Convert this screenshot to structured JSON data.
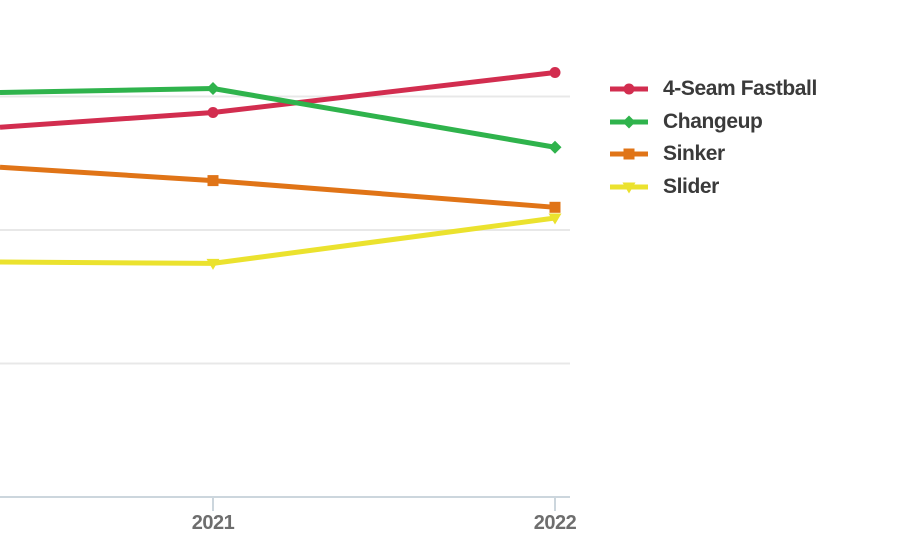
{
  "chart_data": {
    "type": "line",
    "title": "",
    "x_tick_labels": [
      "2021",
      "2022"
    ],
    "x_axis_note": "chart is cropped on the left; lines enter from the left edge (earlier data point off-screen)",
    "y_axis": {
      "labels_visible": false,
      "unit_est": "percent (estimated; gridlines unlabeled, assumed 10 per gridline)",
      "gridline_values_est": [
        10,
        20,
        30
      ],
      "ylim_est": [
        0,
        37
      ]
    },
    "series": [
      {
        "name": "4-Seam Fastball",
        "color": "#d22d4f",
        "marker": "circle",
        "points": [
          {
            "x": "left-edge",
            "value_est": 27.7
          },
          {
            "x": "2021",
            "value_est": 28.8
          },
          {
            "x": "2022",
            "value_est": 31.8
          }
        ]
      },
      {
        "name": "Changeup",
        "color": "#2fb34c",
        "marker": "diamond",
        "points": [
          {
            "x": "left-edge",
            "value_est": 30.3
          },
          {
            "x": "2021",
            "value_est": 30.6
          },
          {
            "x": "2022",
            "value_est": 26.2
          }
        ]
      },
      {
        "name": "Sinker",
        "color": "#e07417",
        "marker": "square",
        "points": [
          {
            "x": "left-edge",
            "value_est": 24.7
          },
          {
            "x": "2021",
            "value_est": 23.7
          },
          {
            "x": "2022",
            "value_est": 21.7
          }
        ]
      },
      {
        "name": "Slider",
        "color": "#ebe22e",
        "marker": "triangle-down",
        "points": [
          {
            "x": "left-edge",
            "value_est": 17.6
          },
          {
            "x": "2021",
            "value_est": 17.5
          },
          {
            "x": "2022",
            "value_est": 20.9
          }
        ]
      }
    ],
    "legend": {
      "position": "right",
      "items": [
        "4-Seam Fastball",
        "Changeup",
        "Sinker",
        "Slider"
      ]
    },
    "colors": {
      "background": "#ffffff",
      "gridline": "#e8e8e8",
      "axis": "#ccd6dd",
      "tick_label": "#6e6e6e",
      "legend_text": "#3a3a3a"
    }
  }
}
